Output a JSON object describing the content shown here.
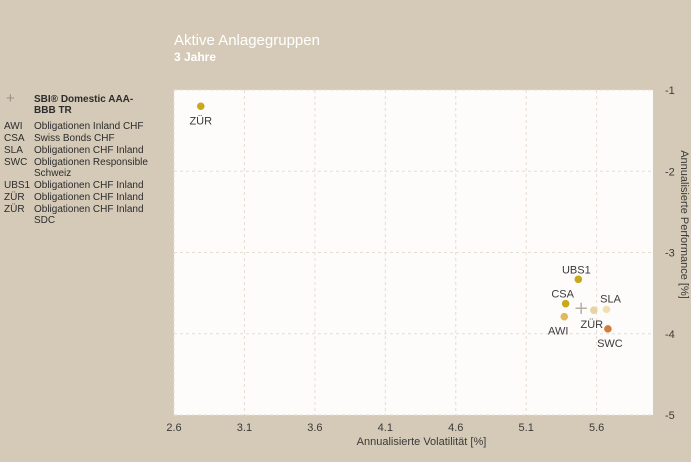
{
  "title": "Aktive Anlagegruppen",
  "subtitle": "3 Jahre",
  "legend": [
    {
      "code": "+",
      "name": "SBI® Domestic AAA-BBB TR"
    },
    {
      "code": "AWI",
      "name": "Obligationen Inland CHF"
    },
    {
      "code": "CSA",
      "name": "Swiss Bonds CHF"
    },
    {
      "code": "SLA",
      "name": "Obligationen CHF Inland"
    },
    {
      "code": "SWC",
      "name": "Obligationen Responsible Schweiz"
    },
    {
      "code": "UBS1",
      "name": "Obligationen CHF Inland"
    },
    {
      "code": "ZÜR",
      "name": "Obligationen CHF Inland"
    },
    {
      "code": "ZÜR",
      "name": "Obligationen CHF Inland SDC"
    }
  ],
  "colors": {
    "background": "#d5cab7",
    "plot_background": "#fdfcfa",
    "grid": "#e4ded3",
    "axis_text": "#3a3a3a",
    "benchmark": "#b5aea5"
  },
  "chart_data": {
    "type": "scatter",
    "title": "Aktive Anlagegruppen",
    "subtitle": "3 Jahre",
    "xlabel": "Annualisierte Volatilität [%]",
    "ylabel": "Annualisierte Performance [%]",
    "xlim": [
      2.6,
      6.0
    ],
    "ylim": [
      -5,
      -1
    ],
    "xticks": [
      "2.6",
      "3.1",
      "3.6",
      "4.1",
      "4.6",
      "5.1",
      "5.6"
    ],
    "yticks": [
      "-1",
      "-2",
      "-3",
      "-4",
      "-5"
    ],
    "grid": true,
    "legend_position": "left",
    "points": [
      {
        "label": "ZÜR",
        "x": 2.79,
        "y": -1.2,
        "color": "#c8a91c"
      },
      {
        "label": "UBS1",
        "x": 5.47,
        "y": -3.33,
        "color": "#c8a91c"
      },
      {
        "label": "CSA",
        "x": 5.38,
        "y": -3.63,
        "color": "#c8a91c"
      },
      {
        "label": "AWI",
        "x": 5.37,
        "y": -3.79,
        "color": "#e3b85c"
      },
      {
        "label": "ZÜR",
        "x": 5.58,
        "y": -3.71,
        "color": "#e9d2a4"
      },
      {
        "label": "SLA",
        "x": 5.67,
        "y": -3.7,
        "color": "#f1dfb2"
      },
      {
        "label": "SWC",
        "x": 5.68,
        "y": -3.94,
        "color": "#cf7e3d"
      }
    ],
    "benchmark": {
      "label": "+",
      "x": 5.49,
      "y": -3.68
    }
  }
}
